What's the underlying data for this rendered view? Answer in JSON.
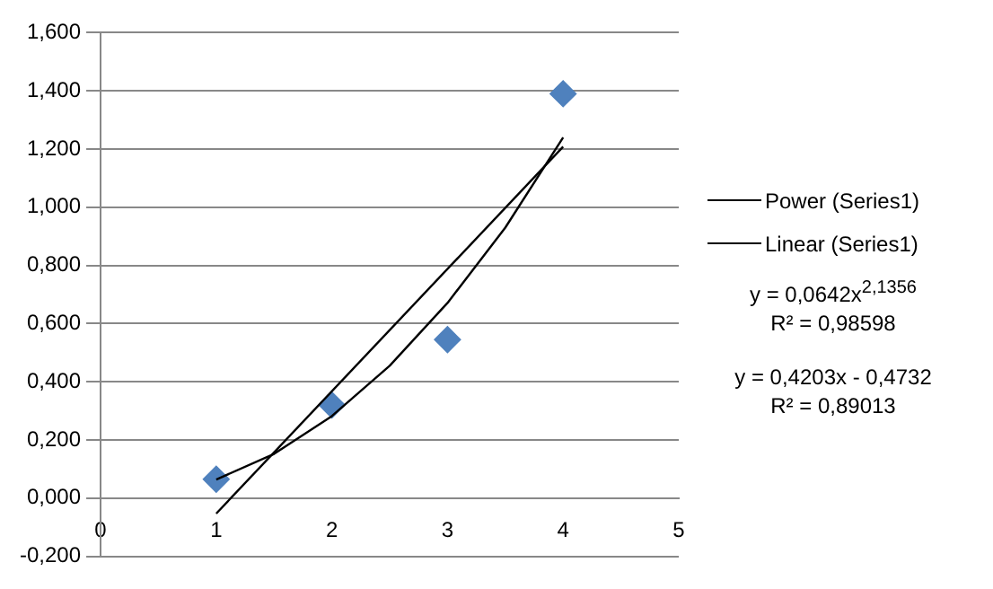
{
  "chart_data": {
    "type": "scatter",
    "series": [
      {
        "type": "scatter",
        "color": "#4f81bd",
        "marker": "diamond",
        "x": [
          1,
          2,
          3,
          4
        ],
        "values": [
          0.065,
          0.32,
          0.545,
          1.39
        ]
      },
      {
        "type": "line",
        "name": "Power (Series1)",
        "color": "#000000",
        "marker": "none",
        "x": [
          1,
          1.5,
          2,
          2.5,
          3,
          3.5,
          4
        ],
        "values": [
          0.064,
          0.152,
          0.282,
          0.455,
          0.671,
          0.93,
          1.24
        ]
      },
      {
        "type": "line",
        "name": "Linear (Series1)",
        "color": "#000000",
        "marker": "none",
        "x": [
          1,
          4
        ],
        "values": [
          -0.053,
          1.208
        ]
      }
    ],
    "xlim": [
      0,
      5
    ],
    "xticks": [
      0,
      1,
      2,
      3,
      4,
      5
    ],
    "ylim": [
      -0.2,
      1.6
    ],
    "yticks": [
      {
        "value": -0.2,
        "label": "-0,200"
      },
      {
        "value": 0,
        "label": "0,000"
      },
      {
        "value": 0.2,
        "label": "0,200"
      },
      {
        "value": 0.4,
        "label": "0,400"
      },
      {
        "value": 0.6,
        "label": "0,600"
      },
      {
        "value": 0.8,
        "label": "0,800"
      },
      {
        "value": 1,
        "label": "1,000"
      },
      {
        "value": 1.2,
        "label": "1,200"
      },
      {
        "value": 1.4,
        "label": "1,400"
      },
      {
        "value": 1.6,
        "label": "1,600"
      }
    ],
    "grid": "y",
    "legend": "right",
    "annotations": [
      "y = 0,0642x$^{2,1356}$",
      "R² = 0,98598",
      "y = 0,4203x - 0,4732",
      "R² = 0,89013"
    ]
  }
}
